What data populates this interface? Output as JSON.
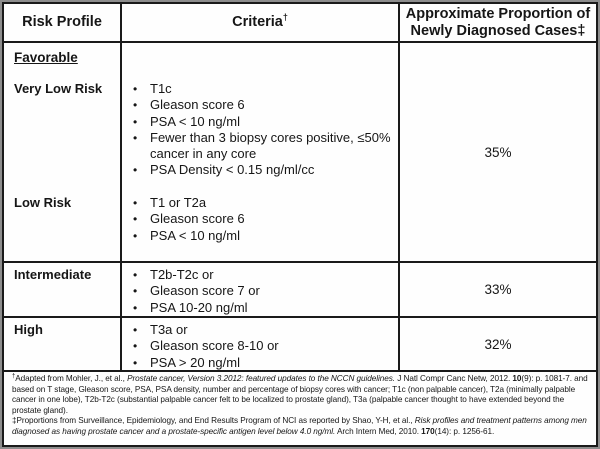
{
  "colors": {
    "table_border": "#1a1a1a",
    "outer_frame": "#8d8d8d",
    "background": "#ffffff",
    "text": "#161616"
  },
  "header": {
    "risk_profile": "Risk Profile",
    "criteria": "Criteria",
    "criteria_footnote_marker": "†",
    "proportion": "Approximate Proportion of Newly Diagnosed Cases‡"
  },
  "favorable_group": {
    "label": "Favorable",
    "sub_rows": [
      {
        "label": "Very Low Risk",
        "bullets": [
          "T1c",
          "Gleason score 6",
          "PSA < 10 ng/ml",
          "Fewer than 3 biopsy cores positive, ≤50% cancer in any core",
          "PSA Density < 0.15 ng/ml/cc"
        ]
      },
      {
        "label": "Low Risk",
        "bullets": [
          "T1 or T2a",
          "Gleason score 6",
          "PSA < 10 ng/ml"
        ]
      }
    ],
    "proportion": "35%"
  },
  "rows": [
    {
      "label": "Intermediate",
      "bullets": [
        "T2b-T2c or",
        "Gleason score 7 or",
        "PSA 10-20 ng/ml"
      ],
      "proportion": "33%"
    },
    {
      "label": "High",
      "bullets": [
        "T3a or",
        "Gleason score 8-10 or",
        "PSA > 20 ng/ml"
      ],
      "proportion": "32%"
    }
  ],
  "footnotes": {
    "dagger": {
      "marker": "†",
      "parts": [
        "Adapted from Mohler, J., et al., ",
        "Prostate cancer, Version 3.2012: featured updates to the NCCN guidelines.",
        " J Natl Compr Canc Netw, 2012. ",
        "10",
        "(9): p. 1081-7. and based on T stage, Gleason score, PSA, PSA density, number and percentage of biopsy cores with cancer; T1c (non palpable cancer), T2a (minimally palpable cancer in one lobe), T2b-T2c (substantial palpable cancer felt to be localized to prostate gland), T3a (palpable cancer thought to have extended beyond the prostate gland)."
      ]
    },
    "ddagger": {
      "marker": "‡",
      "parts": [
        "Proportions from Surveillance, Epidemiology, and End Results Program of NCI as reported by Shao, Y-H, et al., ",
        "Risk profiles and treatment patterns among men diagnosed as having prostate cancer and a prostate-specific antigen level below 4.0 ng/ml.",
        " Arch Intern Med, 2010. ",
        "170",
        "(14): p. 1256-61."
      ]
    }
  }
}
